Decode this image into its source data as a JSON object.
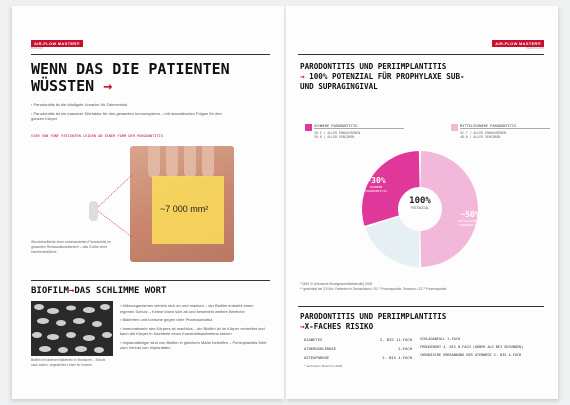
{
  "left_page": {
    "logo": "AIR-FLOW MASTER®",
    "logo_sub": "BIOFILM",
    "headline_line1": "WENN DAS DIE PATIENTEN",
    "headline_line2": "WÜSSTEN",
    "headline_arrow": "→",
    "bullets": [
      "Parodontitis ist die häufigste Ursache für Zahnverlust",
      "Parodontitis ist ein massiver Störfaktor für den gesamten Immunsystem – mit dramatischen Folgen für den ganzen Körper"
    ],
    "red_caption": "VIER VON FÜNF PATIENTEN LEIDEN AN EINER FORM DER PARODONTITIS",
    "area_value": "~7 000 mm²",
    "photo_caption": "Wundoberfläche einer unbehandelten Parodontitis im gesamten Restaurationsbereich – das Größe einer Handinnenfläche",
    "section2_title": "BIOFILM",
    "section2_arrow": "→",
    "section2_rest": "DAS SCHLIMME WORT",
    "section2_bullets": [
      "Mikroorganismen siedeln sich an und machen – der Biofilm entsteht einen eigenen Schutz – Keime lösen sich ab und besiedeln weitere Bereiche",
      "Bakterien und toxische gegen viele Pharmazeutika",
      "Immunabwehr des Körpers ist machtlos – ein Biofilm ist im Körper verbreitet und kann die Körper in Nachteile eines Krankheitsauftretens setzen",
      "Implantatträger sind von Biofilm in gleichem Maße betroffen – Periimplantitis führt zum Verlust von Implantaten"
    ],
    "biofilm_caption": "Biofilm mit diversen Bakterien in Strukturen – Schutz nach außen, ungestörtes Leben im Inneren"
  },
  "right_page": {
    "logo": "AIR-FLOW MASTER®",
    "logo_sub": "PERIOFLOW",
    "title_line1": "PARODONTITIS UND PERIIMPLANTITIS",
    "title_line2_arrow": "→",
    "title_line2": "100% POTENZIAL FÜR PROPHYLAXE SUB-",
    "title_line3": "UND SUPRAGINGIVAL",
    "legend": [
      {
        "label": "SCHWERE PARODONTITIS",
        "color": "#e0389a",
        "lines": [
          "30.5 / ALLER ERWACHSENEN",
          "39.8 / ALLER SENIOREN"
        ]
      },
      {
        "label": "MITTELSCHWERE PARODONTITIS",
        "color": "#f2b8da",
        "lines": [
          "52.7 / ALLER ERWACHSENEN",
          "48.0 / ALLER SENIOREN"
        ]
      }
    ],
    "donut_center_value": "100%",
    "donut_center_label": "POTENZIAL",
    "slice_labels": [
      {
        "value": "~30%",
        "label": "SCHWERE PARODONTITIS"
      },
      {
        "value": "~50%",
        "label": "MITTELSCHWERE PARODONTITIS"
      }
    ],
    "footnotes": [
      "* DMS IV (Deutsche Mundgesundheitsstudie) 2006",
      "** geschätzt bei 3.5 Mio. Patienten in Deutschland • 20.7 Prozentpunkte, Senioren • 22.7 Prozentpunkte"
    ],
    "section2_line1": "PARODONTITIS UND PERIIMPLANTITIS",
    "section2_arrow": "→",
    "section2_line2": "X-FACHES RISIKO",
    "risk_left": [
      {
        "label": "DIABETES",
        "value": "2- BIS 11-FACH"
      },
      {
        "label": "ATHEROSKLEROSE",
        "value": "2-FACH"
      },
      {
        "label": "OSTEOPOROSE",
        "value": "2- BIS 4-FACH"
      }
    ],
    "risk_right": [
      {
        "label": "SCHLAGANFALL",
        "value": "2-FACH"
      },
      {
        "label": "FRÜHGEBURT",
        "value": "4- BIS 8-FACH (HÖHER ALS BEI GESUNDEN)"
      },
      {
        "label": "CHRONISCHE ERKRANKUNG DER ATEMWEGE",
        "value": "2- BIS 4-FACH"
      }
    ],
    "risk_note": "* nach Deht / Busch Int 2003"
  },
  "chart_data": {
    "type": "pie",
    "title": "",
    "slices": [
      {
        "name": "SCHWERE PARODONTITIS",
        "value": 30,
        "color": "#e0389a"
      },
      {
        "name": "MITTELSCHWERE PARODONTITIS",
        "value": 50,
        "color": "#f2b8da"
      },
      {
        "name": "",
        "value": 20,
        "color": "#e6f0f4"
      }
    ]
  }
}
